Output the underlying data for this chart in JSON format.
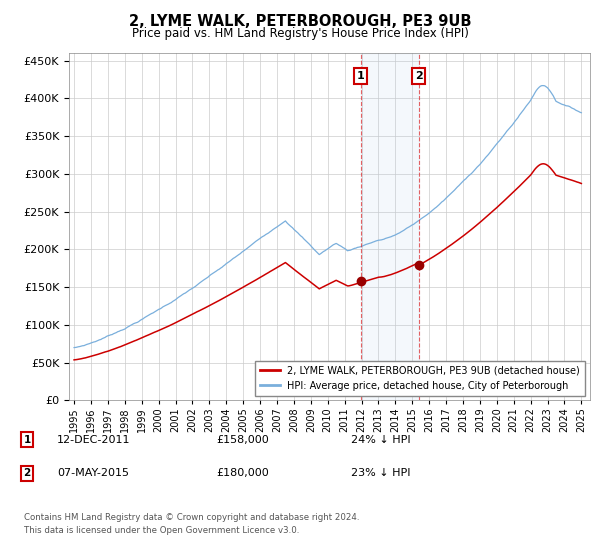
{
  "title": "2, LYME WALK, PETERBOROUGH, PE3 9UB",
  "subtitle": "Price paid vs. HM Land Registry's House Price Index (HPI)",
  "legend_line1": "2, LYME WALK, PETERBOROUGH, PE3 9UB (detached house)",
  "legend_line2": "HPI: Average price, detached house, City of Peterborough",
  "sale1_date_str": "12-DEC-2011",
  "sale1_price": 158000,
  "sale1_pct": "24% ↓ HPI",
  "sale2_date_str": "07-MAY-2015",
  "sale2_price": 180000,
  "sale2_pct": "23% ↓ HPI",
  "sale1_year": 2011.95,
  "sale2_year": 2015.37,
  "footnote1": "Contains HM Land Registry data © Crown copyright and database right 2024.",
  "footnote2": "This data is licensed under the Open Government Licence v3.0.",
  "red_color": "#cc0000",
  "blue_color": "#7aafdc",
  "ylim_max": 460000,
  "ylim_min": 0,
  "xmin": 1994.7,
  "xmax": 2025.5
}
